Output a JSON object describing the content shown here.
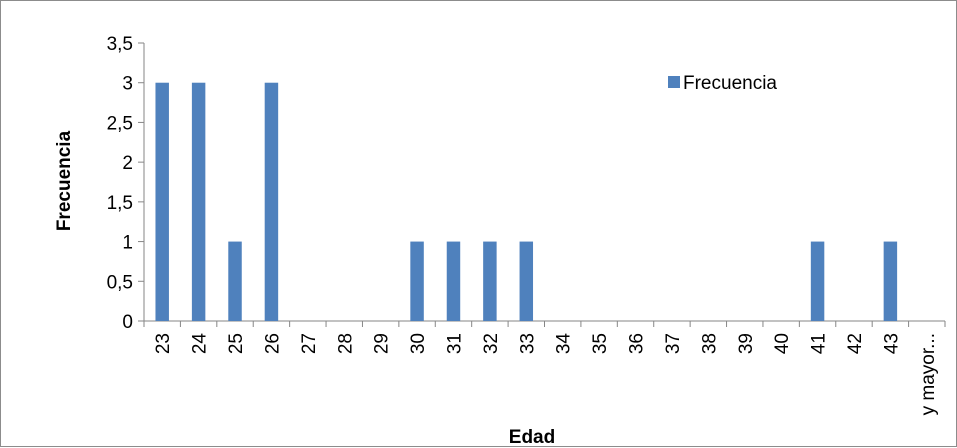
{
  "chart_data": {
    "type": "bar",
    "title": "",
    "xlabel": "Edad",
    "ylabel": "Frecuencia",
    "categories": [
      "23",
      "24",
      "25",
      "26",
      "27",
      "28",
      "29",
      "30",
      "31",
      "32",
      "33",
      "34",
      "35",
      "36",
      "37",
      "38",
      "39",
      "40",
      "41",
      "42",
      "43",
      "y mayor..."
    ],
    "series": [
      {
        "name": "Frecuencia",
        "values": [
          3,
          3,
          1,
          3,
          0,
          0,
          0,
          1,
          1,
          1,
          1,
          0,
          0,
          0,
          0,
          0,
          0,
          0,
          1,
          0,
          1,
          0
        ]
      }
    ],
    "ylim": [
      0,
      3.5
    ],
    "yticks": [
      "0",
      "0,5",
      "1",
      "1,5",
      "2",
      "2,5",
      "3",
      "3,5"
    ],
    "yticks_values": [
      0,
      0.5,
      1,
      1.5,
      2,
      2.5,
      3,
      3.5
    ],
    "grid": false,
    "legend_position": "top-right",
    "bar_color": "#4f81bd"
  }
}
